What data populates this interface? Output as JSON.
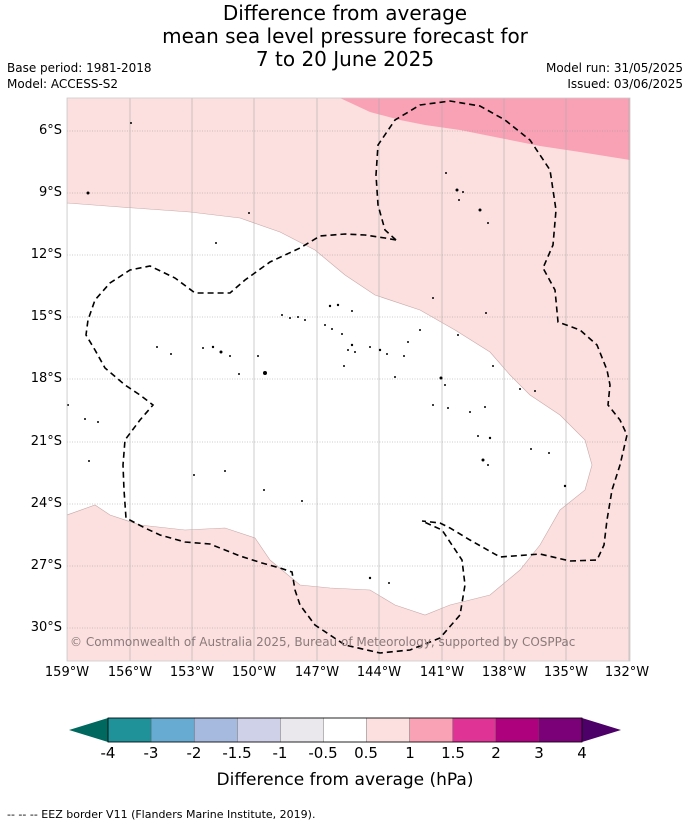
{
  "title": {
    "line1": "Difference from average",
    "line2": "mean sea level pressure forecast for",
    "line3": "7 to 20 June 2025"
  },
  "meta": {
    "base_period": "Base period: 1981-2018",
    "model": "Model: ACCESS-S2",
    "model_run": "Model run: 31/05/2025",
    "issued": "Issued: 03/06/2025"
  },
  "map": {
    "lon_range": [
      -159,
      -132
    ],
    "lat_range": [
      -31.5,
      -4.5
    ],
    "lat_labels": [
      "6°S",
      "9°S",
      "12°S",
      "15°S",
      "18°S",
      "21°S",
      "24°S",
      "27°S",
      "30°S"
    ],
    "lon_labels": [
      "159°W",
      "156°W",
      "153°W",
      "150°W",
      "147°W",
      "144°W",
      "141°W",
      "138°W",
      "135°W",
      "132°W"
    ],
    "copyright": "© Commonwealth of Australia 2025, Bureau of Meteorology, supported by COSPPac",
    "regions": [
      {
        "name": "0.5 to 1 hPa",
        "color": "#fce0df"
      },
      {
        "name": "-0.5 to 0.5 hPa",
        "color": "#ffffff"
      },
      {
        "name": "1 to 1.5 hPa",
        "color": "#f9a1b5"
      }
    ]
  },
  "colorbar": {
    "title": "Difference from average (hPa)",
    "labels": [
      "-4",
      "-3",
      "-2",
      "-1.5",
      "-1",
      "-0.5",
      "0.5",
      "1",
      "1.5",
      "2",
      "3",
      "4"
    ],
    "low_color": "#00685f",
    "high_color": "#4c0068",
    "colors": [
      "#1f9199",
      "#68abd2",
      "#a6b9de",
      "#cfd1e8",
      "#eae8ec",
      "#ffffff",
      "#fce0df",
      "#f9a1b5",
      "#df3496",
      "#ad017d",
      "#7a0177"
    ]
  },
  "footnote": "-- -- -- EEZ border V11 (Flanders Marine Institute, 2019)."
}
